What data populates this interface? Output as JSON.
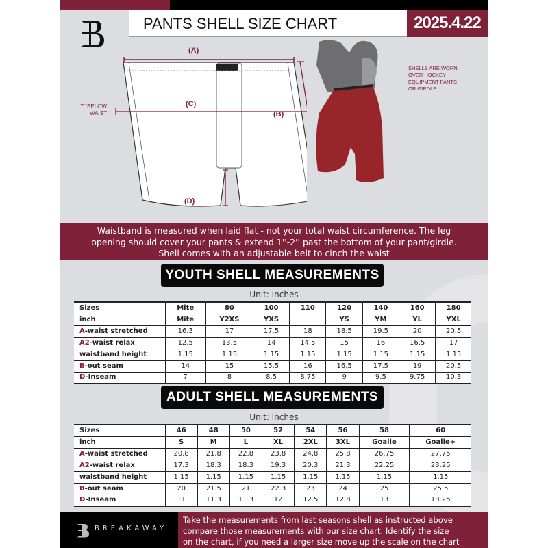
{
  "header": {
    "title": "PANTS SHELL SIZE CHART",
    "date": "2025.4.22",
    "logo_letter": "B"
  },
  "diagram": {
    "label_a": "(A)",
    "label_b": "(B)",
    "label_c": "(C)",
    "label_d": "(D)",
    "below_waist": [
      "7'' BELOW",
      "WAIST"
    ]
  },
  "photo_note": [
    "SHELLS ARE WORN",
    "OVER HOCKEY",
    "EQUIPMENT PANTS",
    "OR GIRDLE"
  ],
  "banner": [
    "Waistband is measured when laid flat - not your total waist circumference. The leg",
    "opening should cover your pants & extend 1''-2'' past the bottom of your pant/girdle.",
    "Shell comes with an adjustable belt to cinch the waist"
  ],
  "youth": {
    "title": "YOUTH SHELL MEASUREMENTS",
    "unit": "Unit: Inches",
    "rows": [
      {
        "key": "",
        "label": "Sizes",
        "values": [
          "Mite",
          "80",
          "100",
          "110",
          "120",
          "140",
          "160",
          "180"
        ]
      },
      {
        "key": "",
        "label": "inch",
        "values": [
          "Mite",
          "Y2XS",
          "YXS",
          "",
          "YS",
          "YM",
          "YL",
          "YXL"
        ]
      },
      {
        "key": "A",
        "label": "-waist stretched",
        "values": [
          "16.3",
          "17",
          "17.5",
          "18",
          "18.5",
          "19.5",
          "20",
          "20.5"
        ]
      },
      {
        "key": "A2",
        "label": "-waist relax",
        "values": [
          "12.5",
          "13.5",
          "14",
          "14.5",
          "15",
          "16",
          "16.5",
          "17"
        ]
      },
      {
        "key": "",
        "label": "waistband height",
        "values": [
          "1.15",
          "1.15",
          "1.15",
          "1.15",
          "1.15",
          "1.15",
          "1.15",
          "1.15"
        ]
      },
      {
        "key": "B",
        "label": "-out seam",
        "values": [
          "14",
          "15",
          "15.5",
          "16",
          "16.5",
          "17.5",
          "19",
          "20.5"
        ]
      },
      {
        "key": "D",
        "label": "-Inseam",
        "values": [
          "7",
          "8",
          "8.5",
          "8.75",
          "9",
          "9.5",
          "9.75",
          "10.3"
        ]
      }
    ]
  },
  "adult": {
    "title": "ADULT SHELL MEASUREMENTS",
    "unit": "Unit: Inches",
    "rows": [
      {
        "key": "",
        "label": "Sizes",
        "values": [
          "46",
          "48",
          "50",
          "52",
          "54",
          "56",
          "58",
          "60"
        ]
      },
      {
        "key": "",
        "label": "inch",
        "values": [
          "S",
          "M",
          "L",
          "XL",
          "2XL",
          "3XL",
          "Goalie",
          "Goalie+"
        ]
      },
      {
        "key": "A",
        "label": "-waist stretched",
        "values": [
          "20.8",
          "21.8",
          "22.8",
          "23.8",
          "24.8",
          "25.8",
          "26.75",
          "27.75"
        ]
      },
      {
        "key": "A2",
        "label": "-waist relax",
        "values": [
          "17.3",
          "18.3",
          "18.3",
          "19.3",
          "20.3",
          "21.3",
          "22.25",
          "23.25"
        ]
      },
      {
        "key": "",
        "label": "waistband height",
        "values": [
          "1.15",
          "1.15",
          "1.15",
          "1.15",
          "1.15",
          "1.15",
          "1.15",
          "1.15"
        ]
      },
      {
        "key": "B",
        "label": "-out seam",
        "values": [
          "20",
          "21.5",
          "21",
          "22.3",
          "23",
          "24",
          "25",
          "25.5"
        ]
      },
      {
        "key": "D",
        "label": "-Inseam",
        "values": [
          "11",
          "11.3",
          "11.3",
          "12",
          "12.5",
          "12.8",
          "13",
          "13.25"
        ]
      }
    ]
  },
  "footer": {
    "brand": "BREAKAWAY",
    "text": [
      "Take the measurements from last seasons shell as instructed above",
      "compare those measurements  with our size chart. Identify the size",
      "on the chart, if you need a larger size move up the scale on the chart"
    ]
  },
  "colors": {
    "brand": "#7f2139",
    "background": "#dcdde0",
    "dark": "#000000"
  }
}
